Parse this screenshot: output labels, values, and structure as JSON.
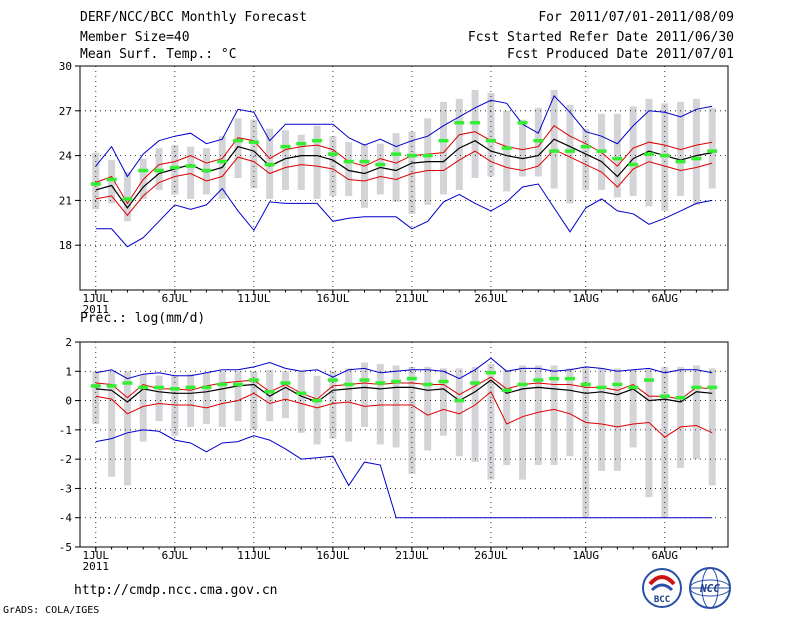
{
  "header": {
    "title": "DERF/NCC/BCC Monthly Forecast",
    "member_size": "Member Size=40",
    "variable": "Mean Surf. Temp.: °C",
    "period": "For 2011/07/01-2011/08/09",
    "started": "Fcst Started Refer Date 2011/06/30",
    "produced": "Fcst Produced Date 2011/07/01"
  },
  "footer": {
    "url": "http://cmdp.ncc.cma.gov.cn",
    "grads": "GrADS: COLA/IGES",
    "logo_bcc": "BCC",
    "logo_ncc": "NCC"
  },
  "colors": {
    "max_min": "#0000cc",
    "spread": "#dd0000",
    "mean": "#000000",
    "obs": "#33ee33",
    "box": "#d4d4d8"
  },
  "chart_data": [
    {
      "type": "line",
      "title": "Mean Surf. Temp.: °C",
      "x_ticks": [
        "1JUL",
        "6JUL",
        "11JUL",
        "16JUL",
        "21JUL",
        "26JUL",
        "1AUG",
        "6AUG"
      ],
      "x_tick_days": [
        1,
        6,
        11,
        16,
        21,
        26,
        32,
        37
      ],
      "x_year": "2011",
      "y_ticks": [
        18,
        21,
        24,
        27,
        30
      ],
      "ylim": [
        15,
        30
      ],
      "days": [
        1,
        2,
        3,
        4,
        5,
        6,
        7,
        8,
        9,
        10,
        11,
        12,
        13,
        14,
        15,
        16,
        17,
        18,
        19,
        20,
        21,
        22,
        23,
        24,
        25,
        26,
        27,
        28,
        29,
        30,
        31,
        32,
        33,
        34,
        35,
        36,
        37,
        38,
        39,
        40
      ],
      "series": [
        {
          "name": "max",
          "values": [
            23.3,
            24.6,
            22.6,
            24.1,
            25.0,
            25.3,
            25.5,
            24.8,
            25.1,
            27.1,
            26.9,
            25.0,
            26.1,
            26.1,
            26.1,
            26.1,
            25.2,
            24.7,
            25.1,
            24.6,
            25.0,
            25.3,
            26.0,
            26.6,
            27.2,
            27.7,
            27.5,
            26.1,
            25.5,
            28.0,
            26.9,
            25.6,
            25.3,
            24.8,
            26.0,
            27.0,
            26.9,
            26.6,
            27.1,
            27.3
          ]
        },
        {
          "name": "upper",
          "values": [
            22.2,
            22.6,
            20.8,
            22.4,
            23.4,
            23.6,
            24.0,
            23.5,
            23.8,
            25.2,
            25.0,
            23.8,
            24.4,
            24.6,
            24.7,
            24.4,
            23.6,
            23.3,
            23.8,
            23.5,
            24.0,
            24.1,
            24.2,
            25.4,
            25.6,
            25.0,
            24.6,
            24.4,
            24.6,
            26.0,
            25.3,
            24.8,
            24.2,
            23.3,
            24.5,
            24.9,
            24.7,
            24.4,
            24.7,
            24.9
          ]
        },
        {
          "name": "mean",
          "values": [
            21.7,
            22.0,
            20.5,
            21.9,
            22.8,
            23.1,
            23.4,
            22.9,
            23.2,
            24.6,
            24.3,
            23.3,
            23.8,
            24.0,
            24.0,
            23.7,
            23.0,
            22.8,
            23.2,
            23.0,
            23.5,
            23.6,
            23.6,
            24.5,
            25.0,
            24.3,
            24.0,
            23.8,
            24.0,
            25.1,
            24.6,
            24.1,
            23.6,
            22.6,
            23.8,
            24.3,
            24.0,
            23.7,
            24.0,
            24.2
          ]
        },
        {
          "name": "lower",
          "values": [
            21.1,
            21.3,
            20.0,
            21.3,
            22.2,
            22.6,
            22.8,
            22.3,
            22.6,
            23.9,
            23.6,
            22.8,
            23.2,
            23.4,
            23.3,
            23.1,
            22.4,
            22.3,
            22.6,
            22.4,
            22.8,
            23.0,
            23.0,
            23.7,
            24.3,
            23.6,
            23.2,
            23.0,
            23.3,
            24.4,
            23.9,
            23.4,
            22.9,
            21.9,
            23.1,
            23.6,
            23.3,
            23.0,
            23.2,
            23.5
          ]
        },
        {
          "name": "min",
          "values": [
            19.1,
            19.1,
            17.9,
            18.5,
            19.6,
            20.7,
            20.4,
            20.7,
            21.8,
            20.3,
            19.0,
            20.9,
            20.8,
            20.8,
            20.8,
            19.6,
            19.8,
            19.9,
            19.9,
            19.9,
            19.1,
            19.6,
            20.9,
            21.4,
            20.8,
            20.3,
            20.9,
            21.9,
            22.1,
            20.5,
            18.9,
            20.5,
            21.1,
            20.3,
            20.1,
            19.4,
            19.8,
            20.3,
            20.8,
            21.0
          ]
        },
        {
          "name": "obs",
          "values": [
            22.1,
            22.4,
            21.1,
            23.0,
            23.0,
            23.2,
            23.3,
            23.0,
            23.6,
            25.0,
            24.9,
            23.4,
            24.6,
            24.8,
            25.0,
            24.1,
            23.6,
            23.6,
            23.4,
            24.1,
            24.0,
            24.0,
            25.0,
            26.2,
            26.2,
            25.0,
            24.5,
            26.2,
            25.0,
            24.3,
            24.3,
            24.6,
            24.3,
            23.8,
            23.4,
            24.1,
            24.0,
            23.6,
            23.8,
            24.3
          ]
        },
        {
          "name": "box_top",
          "values": [
            24.2,
            23.7,
            22.9,
            23.8,
            24.5,
            24.7,
            24.6,
            24.5,
            25.3,
            26.5,
            26.4,
            25.8,
            25.7,
            25.4,
            26.0,
            25.3,
            24.9,
            24.8,
            24.8,
            25.5,
            25.6,
            26.5,
            27.6,
            27.8,
            28.4,
            28.2,
            27.0,
            26.4,
            27.2,
            28.4,
            27.4,
            25.8,
            26.8,
            26.8,
            27.3,
            27.8,
            27.5,
            27.6,
            27.8,
            27.2
          ]
        },
        {
          "name": "box_bottom",
          "values": [
            20.4,
            20.8,
            19.6,
            21.1,
            21.7,
            21.4,
            21.1,
            21.4,
            21.1,
            22.5,
            21.8,
            21.1,
            21.7,
            21.7,
            21.1,
            21.3,
            21.3,
            20.5,
            21.4,
            20.9,
            20.1,
            20.7,
            21.4,
            21.7,
            22.5,
            22.6,
            21.6,
            22.6,
            22.6,
            21.8,
            20.8,
            21.7,
            21.7,
            21.2,
            21.3,
            20.6,
            20.3,
            21.3,
            20.7,
            21.8
          ]
        }
      ]
    },
    {
      "type": "line",
      "title": "Prec.: log(mm/d)",
      "x_ticks": [
        "1JUL",
        "6JUL",
        "11JUL",
        "16JUL",
        "21JUL",
        "26JUL",
        "1AUG",
        "6AUG"
      ],
      "x_tick_days": [
        1,
        6,
        11,
        16,
        21,
        26,
        32,
        37
      ],
      "x_year": "2011",
      "y_ticks": [
        -5,
        -4,
        -3,
        -2,
        -1,
        0,
        1,
        2
      ],
      "ylim": [
        -5,
        2
      ],
      "days": [
        1,
        2,
        3,
        4,
        5,
        6,
        7,
        8,
        9,
        10,
        11,
        12,
        13,
        14,
        15,
        16,
        17,
        18,
        19,
        20,
        21,
        22,
        23,
        24,
        25,
        26,
        27,
        28,
        29,
        30,
        31,
        32,
        33,
        34,
        35,
        36,
        37,
        38,
        39,
        40
      ],
      "series": [
        {
          "name": "max",
          "values": [
            0.95,
            1.05,
            0.75,
            0.9,
            0.95,
            0.85,
            0.85,
            0.95,
            1.05,
            1.05,
            1.15,
            1.3,
            1.1,
            1.0,
            1.05,
            0.8,
            1.05,
            1.1,
            0.95,
            1.0,
            1.05,
            1.05,
            1.0,
            0.75,
            1.05,
            1.45,
            1.0,
            1.1,
            1.1,
            1.0,
            1.05,
            1.15,
            1.1,
            1.0,
            1.05,
            1.1,
            0.95,
            1.05,
            1.05,
            0.95
          ]
        },
        {
          "name": "upper",
          "values": [
            0.6,
            0.55,
            0.1,
            0.55,
            0.4,
            0.4,
            0.35,
            0.5,
            0.6,
            0.65,
            0.7,
            0.3,
            0.55,
            0.25,
            0.05,
            0.5,
            0.55,
            0.6,
            0.55,
            0.6,
            0.6,
            0.55,
            0.55,
            0.2,
            0.5,
            0.8,
            0.4,
            0.55,
            0.6,
            0.55,
            0.55,
            0.45,
            0.45,
            0.35,
            0.55,
            0.15,
            0.15,
            0.05,
            0.45,
            0.4
          ]
        },
        {
          "name": "mean",
          "values": [
            0.4,
            0.35,
            -0.05,
            0.4,
            0.3,
            0.25,
            0.25,
            0.3,
            0.4,
            0.5,
            0.55,
            0.15,
            0.45,
            0.15,
            -0.05,
            0.35,
            0.4,
            0.45,
            0.4,
            0.45,
            0.45,
            0.35,
            0.4,
            0.0,
            0.3,
            0.7,
            0.25,
            0.4,
            0.45,
            0.4,
            0.35,
            0.25,
            0.3,
            0.2,
            0.4,
            0.0,
            0.05,
            -0.05,
            0.3,
            0.25
          ]
        },
        {
          "name": "lower",
          "values": [
            0.15,
            0.05,
            -0.45,
            -0.2,
            -0.1,
            -0.15,
            -0.15,
            -0.25,
            -0.1,
            0.0,
            0.25,
            -0.1,
            0.05,
            -0.1,
            -0.25,
            -0.1,
            -0.05,
            -0.2,
            -0.15,
            -0.15,
            -0.15,
            -0.5,
            -0.3,
            -0.45,
            -0.15,
            0.3,
            -0.8,
            -0.55,
            -0.4,
            -0.3,
            -0.45,
            -0.75,
            -0.8,
            -0.9,
            -0.8,
            -0.75,
            -1.25,
            -0.9,
            -0.85,
            -1.1
          ]
        },
        {
          "name": "min",
          "values": [
            -1.4,
            -1.3,
            -1.1,
            -1.0,
            -1.05,
            -1.35,
            -1.45,
            -1.75,
            -1.45,
            -1.4,
            -1.2,
            -1.35,
            -1.65,
            -2.0,
            -1.95,
            -1.9,
            -2.9,
            -2.1,
            -2.2,
            -4.0,
            -4.0,
            -4.0,
            -4.0,
            -4.0,
            -4.0,
            -4.0,
            -4.0,
            -4.0,
            -4.0,
            -4.0,
            -4.0,
            -4.0,
            -4.0,
            -4.0,
            -4.0,
            -4.0,
            -4.0,
            -4.0,
            -4.0,
            -4.0
          ]
        },
        {
          "name": "obs",
          "values": [
            0.5,
            0.5,
            0.6,
            0.45,
            0.45,
            0.4,
            0.45,
            0.45,
            0.55,
            0.55,
            0.7,
            0.3,
            0.6,
            0.25,
            0.0,
            0.7,
            0.55,
            0.7,
            0.6,
            0.65,
            0.75,
            0.55,
            0.65,
            0.0,
            0.6,
            0.95,
            0.35,
            0.55,
            0.7,
            0.75,
            0.75,
            0.55,
            0.45,
            0.55,
            0.45,
            0.7,
            0.15,
            0.1,
            0.45,
            0.45
          ]
        },
        {
          "name": "box_top",
          "values": [
            1.0,
            1.0,
            1.0,
            0.9,
            0.85,
            0.85,
            0.9,
            0.95,
            1.0,
            1.0,
            1.0,
            1.05,
            1.0,
            1.0,
            0.85,
            1.0,
            1.1,
            1.3,
            1.25,
            1.2,
            1.15,
            1.15,
            1.1,
            1.1,
            1.15,
            1.25,
            1.05,
            1.2,
            1.2,
            1.2,
            1.1,
            1.15,
            1.1,
            1.1,
            1.05,
            1.1,
            1.15,
            1.15,
            1.2,
            1.1
          ]
        },
        {
          "name": "box_bottom",
          "values": [
            -0.8,
            -2.6,
            -2.9,
            -1.4,
            -0.7,
            -1.2,
            -0.9,
            -0.8,
            -0.9,
            -0.7,
            -1.0,
            -0.7,
            -0.6,
            -1.1,
            -1.5,
            -1.3,
            -1.4,
            -0.9,
            -1.5,
            -1.6,
            -2.5,
            -1.7,
            -1.2,
            -1.9,
            -2.1,
            -2.7,
            -2.2,
            -2.7,
            -2.2,
            -2.2,
            -1.9,
            -4.0,
            -2.4,
            -2.4,
            -1.6,
            -3.3,
            -4.0,
            -2.3,
            -2.0,
            -2.9
          ]
        }
      ]
    }
  ]
}
